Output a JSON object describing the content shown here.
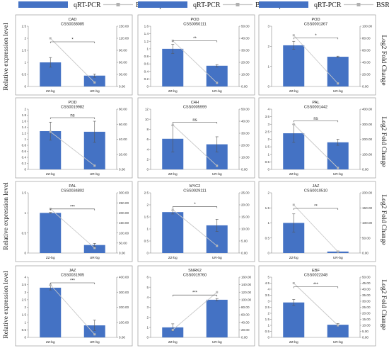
{
  "legend": {
    "bar_label": "qRT-PCR",
    "line_label": "BSR-seq",
    "bar_color": "#4472C4",
    "line_color": "#C8C8C8"
  },
  "ylabel_left": "Relative expression level",
  "ylabel_right": "Log2 Fold Change",
  "chart_data": [
    {
      "type": "bar",
      "title": "CAD",
      "subtitle": "CSS0038085",
      "categories": [
        "ZZ-bg",
        "UR-bg"
      ],
      "values": [
        1.0,
        0.45
      ],
      "errors": [
        0.2,
        0.07
      ],
      "ylim": [
        0,
        2.5
      ],
      "yticks": [
        0,
        0.5,
        1,
        1.5,
        2,
        2.5
      ],
      "ytick_labels": [
        "0",
        "0.5",
        "1",
        "1.5",
        "2",
        "2.5"
      ],
      "line_values": [
        120,
        10
      ],
      "y2lim": [
        0,
        150
      ],
      "y2ticks": [
        0,
        30,
        60,
        90,
        120,
        150
      ],
      "y2tick_labels": [
        "0.00",
        "30.00",
        "60.00",
        "90.00",
        "120.00",
        "150.00"
      ],
      "significance": "*"
    },
    {
      "type": "bar",
      "title": "POD",
      "subtitle": "CSS0050111",
      "categories": [
        "ZZ-bg",
        "UR-bg"
      ],
      "values": [
        1.0,
        0.55
      ],
      "errors": [
        0.12,
        0.03
      ],
      "ylim": [
        0,
        1.6
      ],
      "yticks": [
        0,
        0.2,
        0.4,
        0.6,
        0.8,
        1,
        1.2,
        1.4,
        1.6
      ],
      "ytick_labels": [
        "0",
        "0.2",
        "0.4",
        "0.6",
        "0.8",
        "1",
        "1.2",
        "1.4",
        "1.6"
      ],
      "line_values": [
        38,
        3
      ],
      "y2lim": [
        0,
        50
      ],
      "y2ticks": [
        0,
        10,
        20,
        30,
        40,
        50
      ],
      "y2tick_labels": [
        "0.00",
        "10.00",
        "20.00",
        "30.00",
        "40.00",
        "50.00"
      ],
      "significance": "**"
    },
    {
      "type": "bar",
      "title": "POD",
      "subtitle": "CSS0001367",
      "categories": [
        "ZZ-bg",
        "UR-bg"
      ],
      "values": [
        2.05,
        1.48
      ],
      "errors": [
        0.2,
        0.03
      ],
      "ylim": [
        0,
        3
      ],
      "yticks": [
        0,
        1,
        2,
        3
      ],
      "ytick_labels": [
        "0",
        "1",
        "2",
        "3"
      ],
      "line_values": [
        85,
        5
      ],
      "y2lim": [
        0,
        100
      ],
      "y2ticks": [
        0,
        20,
        40,
        60,
        80,
        100
      ],
      "y2tick_labels": [
        "0.00",
        "20.00",
        "40.00",
        "60.00",
        "80.00",
        "100.00"
      ],
      "significance": "*"
    },
    {
      "type": "bar",
      "title": "POD",
      "subtitle": "CSS0019982",
      "categories": [
        "ZZ-bg",
        "UR-bg"
      ],
      "values": [
        1.27,
        1.25
      ],
      "errors": [
        0.3,
        0.35
      ],
      "ylim": [
        0,
        2
      ],
      "yticks": [
        0,
        0.2,
        0.4,
        0.6,
        0.8,
        1,
        1.2,
        1.4,
        1.6,
        1.8,
        2
      ],
      "ytick_labels": [
        "0",
        "0.2",
        "0.4",
        "0.6",
        "0.8",
        "1",
        "1.2",
        "1.4",
        "1.6",
        "1.8",
        "2"
      ],
      "line_values": [
        50,
        5
      ],
      "y2lim": [
        0,
        80
      ],
      "y2ticks": [
        0,
        20,
        40,
        60,
        80
      ],
      "y2tick_labels": [
        "0.00",
        "20.00",
        "40.00",
        "60.00",
        "80.00"
      ],
      "significance": "ns"
    },
    {
      "type": "bar",
      "title": "C4H",
      "subtitle": "CSS0005999",
      "categories": [
        "ZZ-bg",
        "UR-bg"
      ],
      "values": [
        6.1,
        5.0
      ],
      "errors": [
        2.6,
        1.5
      ],
      "ylim": [
        0,
        12
      ],
      "yticks": [
        0,
        2,
        4,
        6,
        8,
        10,
        12
      ],
      "ytick_labels": [
        "0",
        "2",
        "4",
        "6",
        "8",
        "10",
        "12"
      ],
      "line_values": [
        37,
        3
      ],
      "y2lim": [
        0,
        50
      ],
      "y2ticks": [
        0,
        10,
        20,
        30,
        40,
        50
      ],
      "y2tick_labels": [
        "0.00",
        "10.00",
        "20.00",
        "30.00",
        "40.00",
        "50.00"
      ],
      "significance": "ns"
    },
    {
      "type": "bar",
      "title": "PAL",
      "subtitle": "CSS0001442",
      "categories": [
        "ZZ-bg",
        "UR-bg"
      ],
      "values": [
        2.4,
        1.8
      ],
      "errors": [
        0.6,
        0.2
      ],
      "ylim": [
        0,
        4
      ],
      "yticks": [
        0,
        0.5,
        1,
        1.5,
        2,
        2.5,
        3,
        3.5,
        4
      ],
      "ytick_labels": [
        "0",
        "0.5",
        "1",
        "1.5",
        "2",
        "2.5",
        "3",
        "3.5",
        "4"
      ],
      "line_values": [
        300,
        10
      ],
      "y2lim": [
        0,
        400
      ],
      "y2ticks": [
        0,
        100,
        200,
        300,
        400
      ],
      "y2tick_labels": [
        "0.00",
        "100.00",
        "200.00",
        "300.00",
        "400.00"
      ],
      "significance": "ns"
    },
    {
      "type": "bar",
      "title": "PAL",
      "subtitle": "CSS0034802",
      "categories": [
        "ZZ-bg",
        "UR-bg"
      ],
      "values": [
        1.0,
        0.2
      ],
      "errors": [
        0.01,
        0.04
      ],
      "ylim": [
        0,
        1.5
      ],
      "yticks": [
        0,
        0.5,
        1,
        1.5
      ],
      "ytick_labels": [
        "0",
        "0.5",
        "1",
        "1.5"
      ],
      "line_values": [
        220,
        25
      ],
      "y2lim": [
        0,
        300
      ],
      "y2ticks": [
        0,
        50,
        100,
        150,
        200,
        250,
        300
      ],
      "y2tick_labels": [
        "0.00",
        "50.00",
        "100.00",
        "150.00",
        "200.00",
        "250.00",
        "300.00"
      ],
      "significance": "***"
    },
    {
      "type": "bar",
      "title": "MYC2",
      "subtitle": "CSS0029111",
      "categories": [
        "ZZ-bg",
        "UR-bg"
      ],
      "values": [
        1.7,
        1.15
      ],
      "errors": [
        0.08,
        0.25
      ],
      "ylim": [
        0,
        2.5
      ],
      "yticks": [
        0,
        0.5,
        1,
        1.5,
        2,
        2.5
      ],
      "ytick_labels": [
        "0",
        "0.5",
        "1",
        "1.5",
        "2",
        "2.5"
      ],
      "line_values": [
        18,
        3
      ],
      "y2lim": [
        0,
        25
      ],
      "y2ticks": [
        0,
        5,
        10,
        15,
        20,
        25
      ],
      "y2tick_labels": [
        "0.00",
        "5.00",
        "10.00",
        "15.00",
        "20.00",
        "25.00"
      ],
      "significance": "*"
    },
    {
      "type": "bar",
      "title": "JAZ",
      "subtitle": "CSS0010510",
      "categories": [
        "ZZ-bg",
        "UR-bg"
      ],
      "values": [
        1.0,
        0.05
      ],
      "errors": [
        0.3,
        0.02
      ],
      "ylim": [
        0,
        2
      ],
      "yticks": [
        0,
        0.5,
        1,
        1.5,
        2
      ],
      "ytick_labels": [
        "0",
        "0.5",
        "1",
        "1.5",
        "2"
      ],
      "line_values": [
        160,
        5
      ],
      "y2lim": [
        0,
        200
      ],
      "y2ticks": [
        0,
        50,
        100,
        150,
        200
      ],
      "y2tick_labels": [
        "0.00",
        "50.00",
        "100.00",
        "150.00",
        "200.00"
      ],
      "significance": "**"
    },
    {
      "type": "bar",
      "title": "JAZ",
      "subtitle": "CSS0031905",
      "categories": [
        "ZZ-bg",
        "UR-bg"
      ],
      "values": [
        3.3,
        0.8
      ],
      "errors": [
        0.15,
        0.35
      ],
      "ylim": [
        0,
        4
      ],
      "yticks": [
        0,
        0.5,
        1,
        1.5,
        2,
        2.5,
        3,
        3.5,
        4
      ],
      "ytick_labels": [
        "0",
        "0.5",
        "1",
        "1.5",
        "2",
        "2.5",
        "3",
        "3.5",
        "4"
      ],
      "line_values": [
        350,
        20
      ],
      "y2lim": [
        0,
        400
      ],
      "y2ticks": [
        0,
        100,
        200,
        300,
        400
      ],
      "y2tick_labels": [
        "0.00",
        "100.00",
        "200.00",
        "300.00",
        "400.00"
      ],
      "significance": "***"
    },
    {
      "type": "bar",
      "title": "SNRK2",
      "subtitle": "CSS0019760",
      "categories": [
        "ZZ-bg",
        "UR-bg"
      ],
      "values": [
        1.0,
        3.75
      ],
      "errors": [
        0.35,
        0.12
      ],
      "ylim": [
        0,
        6
      ],
      "yticks": [
        0,
        1,
        2,
        3,
        4,
        5,
        6
      ],
      "ytick_labels": [
        "0",
        "1",
        "2",
        "3",
        "4",
        "5",
        "6"
      ],
      "line_values": [
        20,
        120
      ],
      "y2lim": [
        0,
        160
      ],
      "y2ticks": [
        0,
        20,
        40,
        60,
        80,
        100,
        120,
        140,
        160
      ],
      "y2tick_labels": [
        "0.00",
        "20.00",
        "40.00",
        "60.00",
        "80.00",
        "100.00",
        "120.00",
        "140.00",
        "160.00"
      ],
      "significance": "***"
    },
    {
      "type": "bar",
      "title": "EBF",
      "subtitle": "CSS0022348",
      "categories": [
        "ZZ-bg",
        "UR-bg"
      ],
      "values": [
        2.9,
        1.05
      ],
      "errors": [
        0.25,
        0.1
      ],
      "ylim": [
        0,
        5
      ],
      "yticks": [
        0,
        0.5,
        1,
        1.5,
        2,
        2.5,
        3,
        3.5,
        4,
        4.5,
        5
      ],
      "ytick_labels": [
        "0",
        "0.5",
        "1",
        "1.5",
        "2",
        "2.5",
        "3",
        "3.5",
        "4",
        "4.5",
        "5"
      ],
      "line_values": [
        45,
        10
      ],
      "y2lim": [
        0,
        50
      ],
      "y2ticks": [
        0,
        5,
        10,
        15,
        20,
        25,
        30,
        35,
        40,
        45,
        50
      ],
      "y2tick_labels": [
        "0.00",
        "5.00",
        "10.00",
        "15.00",
        "20.00",
        "25.00",
        "30.00",
        "35.00",
        "40.00",
        "45.00",
        "50.00"
      ],
      "significance": "***"
    }
  ]
}
